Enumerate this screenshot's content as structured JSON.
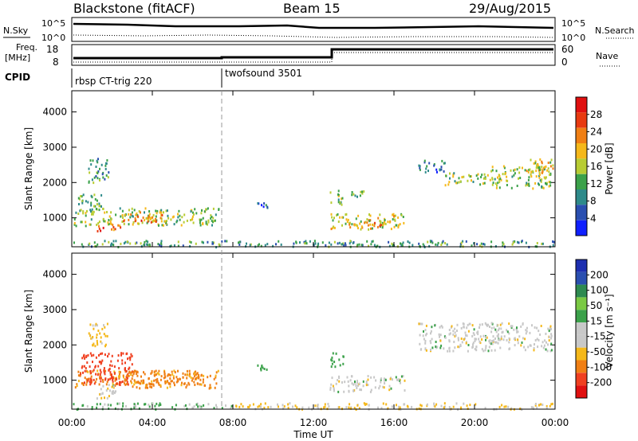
{
  "header": {
    "station": "Blackstone (fitACF)",
    "beam": "Beam 15",
    "date": "29/Aug/2015"
  },
  "top_panels": {
    "nsky_label": "N.Sky",
    "nsearch_label": "N.Search",
    "noise_ticks": [
      "10^5",
      "10^0"
    ],
    "freq_label_top": "Freq.",
    "freq_label_bottom": "[MHz]",
    "freq_ticks": [
      "18",
      "8"
    ],
    "nave_label": "Nave",
    "nave_ticks": [
      "60",
      "0"
    ],
    "cpid_label": "CPID",
    "cpid_segments": [
      {
        "name": "rbsp CT-trig 220",
        "start_hour": 0
      },
      {
        "name": "twofsound 3501",
        "start_hour": 7.6
      }
    ]
  },
  "x_axis": {
    "label": "Time UT",
    "ticks": [
      "00:00",
      "04:00",
      "08:00",
      "12:00",
      "16:00",
      "20:00",
      "00:00"
    ],
    "range_hours": [
      0,
      24
    ]
  },
  "colors": {
    "power_scale": [
      "#1020ff",
      "#2a4fb0",
      "#2e8a8a",
      "#3ba14a",
      "#b8cc33",
      "#f5b81a",
      "#f07f14",
      "#e83a10",
      "#e01010"
    ],
    "velocity_scale": [
      "#e01010",
      "#f04020",
      "#f07f14",
      "#f5b81a",
      "#c8c8c8",
      "#c8c8c8",
      "#3ba14a",
      "#7ac943",
      "#2e8a50",
      "#2a4fb0",
      "#1d2fb0"
    ]
  },
  "chart_data": [
    {
      "type": "heatmap",
      "title": "",
      "ylabel": "Slant Range [km]",
      "xlabel": "",
      "yticks": [
        "1000",
        "2000",
        "3000",
        "4000"
      ],
      "ylim": [
        180,
        4600
      ],
      "colorbar": {
        "label": "Power [dB]",
        "ticks": [
          "4",
          "8",
          "12",
          "16",
          "20",
          "24",
          "28"
        ],
        "range": [
          0,
          30
        ]
      },
      "regions": [
        {
          "t0": 0.1,
          "t1": 7.3,
          "r0": 800,
          "r1": 1300,
          "value": 14
        },
        {
          "t0": 2.5,
          "t1": 4.5,
          "r0": 900,
          "r1": 1200,
          "value": 22
        },
        {
          "t0": 1.2,
          "t1": 2.4,
          "r0": 650,
          "r1": 850,
          "value": 24
        },
        {
          "t0": 0.8,
          "t1": 1.8,
          "r0": 2000,
          "r1": 2700,
          "value": 10
        },
        {
          "t0": 0.3,
          "t1": 1.5,
          "r0": 1200,
          "r1": 1700,
          "value": 12
        },
        {
          "t0": 9.2,
          "t1": 9.7,
          "r0": 1300,
          "r1": 1450,
          "value": 6
        },
        {
          "t0": 12.8,
          "t1": 16.5,
          "r0": 700,
          "r1": 1150,
          "value": 16
        },
        {
          "t0": 13.5,
          "t1": 15.5,
          "r0": 750,
          "r1": 900,
          "value": 22
        },
        {
          "t0": 12.8,
          "t1": 13.5,
          "r0": 1400,
          "r1": 1800,
          "value": 14
        },
        {
          "t0": 13.5,
          "t1": 14.5,
          "r0": 1600,
          "r1": 1800,
          "value": 12
        },
        {
          "t0": 17.2,
          "t1": 18.5,
          "r0": 2300,
          "r1": 2650,
          "value": 8
        },
        {
          "t0": 18.5,
          "t1": 20.5,
          "r0": 1950,
          "r1": 2300,
          "value": 14
        },
        {
          "t0": 20.5,
          "t1": 23.8,
          "r0": 1850,
          "r1": 2500,
          "value": 14
        },
        {
          "t0": 22.5,
          "t1": 24.0,
          "r0": 2300,
          "r1": 2700,
          "value": 18
        },
        {
          "t0": 0.0,
          "t1": 24.0,
          "r0": 200,
          "r1": 380,
          "value": 10
        }
      ]
    },
    {
      "type": "heatmap",
      "title": "",
      "ylabel": "Slant Range [km]",
      "xlabel": "Time UT",
      "yticks": [
        "1000",
        "2000",
        "3000",
        "4000"
      ],
      "ylim": [
        180,
        4600
      ],
      "colorbar": {
        "label": "Velocity [m s⁻¹]",
        "ticks": [
          "200",
          "100",
          "50",
          "15",
          "-15",
          "-50",
          "-100",
          "-200"
        ],
        "range": [
          -250,
          250
        ]
      },
      "regions": [
        {
          "t0": 0.1,
          "t1": 7.3,
          "r0": 800,
          "r1": 1300,
          "value": -60
        },
        {
          "t0": 0.4,
          "t1": 3.0,
          "r0": 900,
          "r1": 1800,
          "value": -180
        },
        {
          "t0": 2.5,
          "t1": 6.5,
          "r0": 900,
          "r1": 1300,
          "value": -70
        },
        {
          "t0": 1.2,
          "t1": 2.4,
          "r0": 500,
          "r1": 900,
          "value": 0
        },
        {
          "t0": 0.8,
          "t1": 1.8,
          "r0": 2000,
          "r1": 2700,
          "value": -30
        },
        {
          "t0": 9.2,
          "t1": 9.7,
          "r0": 1300,
          "r1": 1450,
          "value": 40
        },
        {
          "t0": 12.8,
          "t1": 16.5,
          "r0": 700,
          "r1": 1150,
          "value": 0
        },
        {
          "t0": 12.8,
          "t1": 13.5,
          "r0": 1400,
          "r1": 1800,
          "value": 30
        },
        {
          "t0": 17.2,
          "t1": 23.8,
          "r0": 1850,
          "r1": 2650,
          "value": 0
        },
        {
          "t0": 0.0,
          "t1": 8.0,
          "r0": 200,
          "r1": 380,
          "value": 20
        },
        {
          "t0": 8.0,
          "t1": 24.0,
          "r0": 200,
          "r1": 380,
          "value": -20
        }
      ]
    }
  ]
}
